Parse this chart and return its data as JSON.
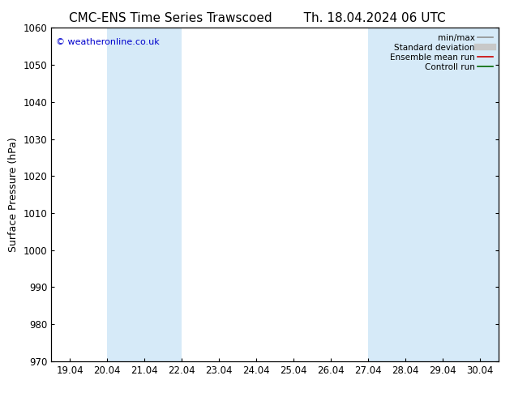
{
  "title_left": "CMC-ENS Time Series Trawscoed",
  "title_right": "Th. 18.04.2024 06 UTC",
  "ylabel": "Surface Pressure (hPa)",
  "ylim": [
    970,
    1060
  ],
  "yticks": [
    970,
    980,
    990,
    1000,
    1010,
    1020,
    1030,
    1040,
    1050,
    1060
  ],
  "x_labels": [
    "19.04",
    "20.04",
    "21.04",
    "22.04",
    "23.04",
    "24.04",
    "25.04",
    "26.04",
    "27.04",
    "28.04",
    "29.04",
    "30.04"
  ],
  "x_values": [
    0,
    1,
    2,
    3,
    4,
    5,
    6,
    7,
    8,
    9,
    10,
    11
  ],
  "xlim": [
    -0.5,
    11.5
  ],
  "shaded_bands": [
    {
      "x_start": 1,
      "x_end": 3,
      "color": "#d6eaf8"
    },
    {
      "x_start": 8,
      "x_end": 10,
      "color": "#d6eaf8"
    },
    {
      "x_start": 10,
      "x_end": 11.5,
      "color": "#d6eaf8"
    }
  ],
  "watermark": "© weatheronline.co.uk",
  "watermark_color": "#0000cc",
  "background_color": "#ffffff",
  "plot_bg_color": "#ffffff",
  "legend_entries": [
    {
      "label": "min/max",
      "color": "#909090",
      "lw": 1.2
    },
    {
      "label": "Standard deviation",
      "color": "#c8c8c8",
      "lw": 6
    },
    {
      "label": "Ensemble mean run",
      "color": "#cc0000",
      "lw": 1.2
    },
    {
      "label": "Controll run",
      "color": "#006600",
      "lw": 1.2
    }
  ],
  "figsize": [
    6.34,
    4.9
  ],
  "dpi": 100,
  "title_fontsize": 11,
  "ylabel_fontsize": 9,
  "tick_fontsize": 8.5,
  "legend_fontsize": 7.5,
  "watermark_fontsize": 8
}
